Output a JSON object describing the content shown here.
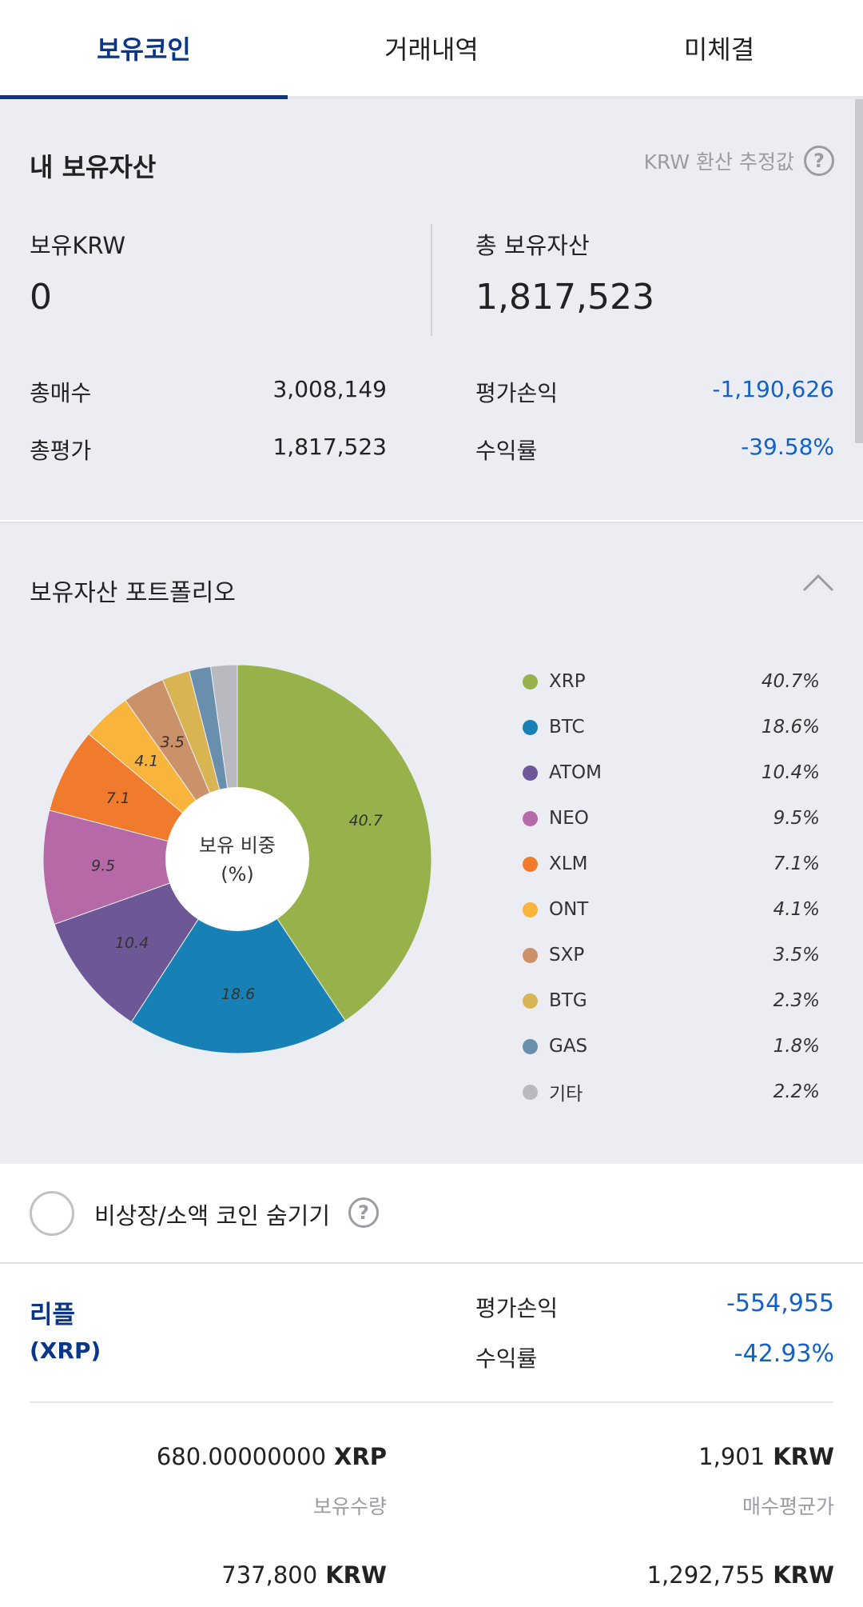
{
  "tabs": [
    {
      "label": "보유코인",
      "active": true
    },
    {
      "label": "거래내역",
      "active": false
    },
    {
      "label": "미체결",
      "active": false
    }
  ],
  "summary": {
    "title": "내 보유자산",
    "estimate_label": "KRW 환산 추정값",
    "help_icon": "?",
    "krw_label": "보유KRW",
    "krw_value": "0",
    "total_label": "총 보유자산",
    "total_value": "1,817,523",
    "rows": {
      "buy_label": "총매수",
      "buy_value": "3,008,149",
      "eval_label": "총평가",
      "eval_value": "1,817,523",
      "pnl_label": "평가손익",
      "pnl_value": "-1,190,626",
      "rate_label": "수익률",
      "rate_value": "-39.58%"
    }
  },
  "portfolio": {
    "title": "보유자산 포트폴리오",
    "center_label_1": "보유 비중",
    "center_label_2": "(%)"
  },
  "colors": {
    "XRP": "#97b24a",
    "BTC": "#1781b5",
    "ATOM": "#6e5796",
    "NEO": "#b56aa7",
    "XLM": "#f07b2c",
    "ONT": "#f8b43b",
    "SXP": "#cb9169",
    "BTG": "#d8b453",
    "GAS": "#6a8ead",
    "ETC": "#b8bac0",
    "accent": "#093687",
    "negative": "#1261c4"
  },
  "chart_data": {
    "type": "pie",
    "title": "",
    "categories": [
      "XRP",
      "BTC",
      "ATOM",
      "NEO",
      "XLM",
      "ONT",
      "SXP",
      "BTG",
      "GAS",
      "기타"
    ],
    "values": [
      40.7,
      18.6,
      10.4,
      9.5,
      7.1,
      4.1,
      3.5,
      2.3,
      1.8,
      2.2
    ],
    "slice_labels": [
      "40.7",
      "18.6",
      "10.4",
      "9.5",
      "7.1",
      "4.1",
      "3.5",
      "",
      "",
      ""
    ],
    "legend_pct": [
      "40.7%",
      "18.6%",
      "10.4%",
      "9.5%",
      "7.1%",
      "4.1%",
      "3.5%",
      "2.3%",
      "1.8%",
      "2.2%"
    ],
    "donut": true,
    "legend_placement": "right"
  },
  "hide_option": {
    "label": "비상장/소액 코인 숨기기",
    "help_icon": "?",
    "checked": false
  },
  "coin": {
    "name": "리플",
    "symbol": "(XRP)",
    "pnl_label": "평가손익",
    "pnl_value": "-554,955",
    "rate_label": "수익률",
    "rate_value": "-42.93%",
    "qty_value": "680.00000000",
    "qty_unit": "XRP",
    "qty_label": "보유수량",
    "avg_value": "1,901",
    "avg_unit": "KRW",
    "avg_label": "매수평균가",
    "eval_value": "737,800",
    "eval_unit": "KRW",
    "buy_value": "1,292,755",
    "buy_unit": "KRW"
  }
}
